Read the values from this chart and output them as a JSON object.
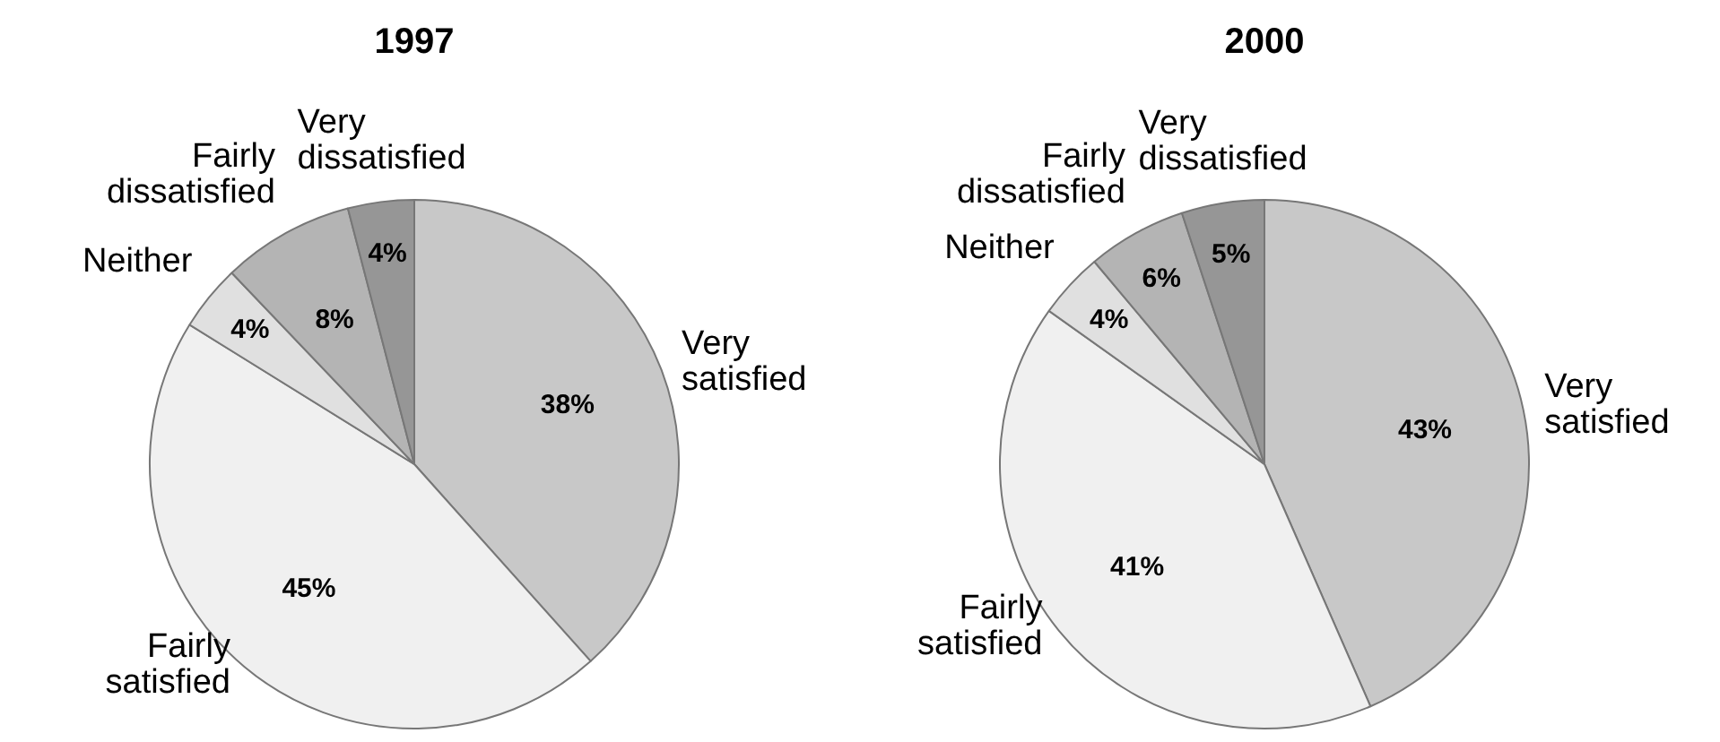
{
  "chart_data": [
    {
      "type": "pie",
      "title": "1997",
      "categories": [
        "Very satisfied",
        "Fairly satisfied",
        "Neither",
        "Fairly dissatisfied",
        "Very dissatisfied"
      ],
      "values": [
        38,
        45,
        4,
        8,
        4
      ],
      "value_labels": [
        "38%",
        "45%",
        "4%",
        "8%",
        "4%"
      ],
      "colors": [
        "#c8c8c8",
        "#f0f0f0",
        "#e0e0e0",
        "#b4b4b4",
        "#969696"
      ]
    },
    {
      "type": "pie",
      "title": "2000",
      "categories": [
        "Very satisfied",
        "Fairly satisfied",
        "Neither",
        "Fairly dissatisfied",
        "Very dissatisfied"
      ],
      "values": [
        43,
        41,
        4,
        6,
        5
      ],
      "value_labels": [
        "43%",
        "41%",
        "4%",
        "6%",
        "5%"
      ],
      "colors": [
        "#c8c8c8",
        "#f0f0f0",
        "#e0e0e0",
        "#b4b4b4",
        "#969696"
      ]
    }
  ]
}
